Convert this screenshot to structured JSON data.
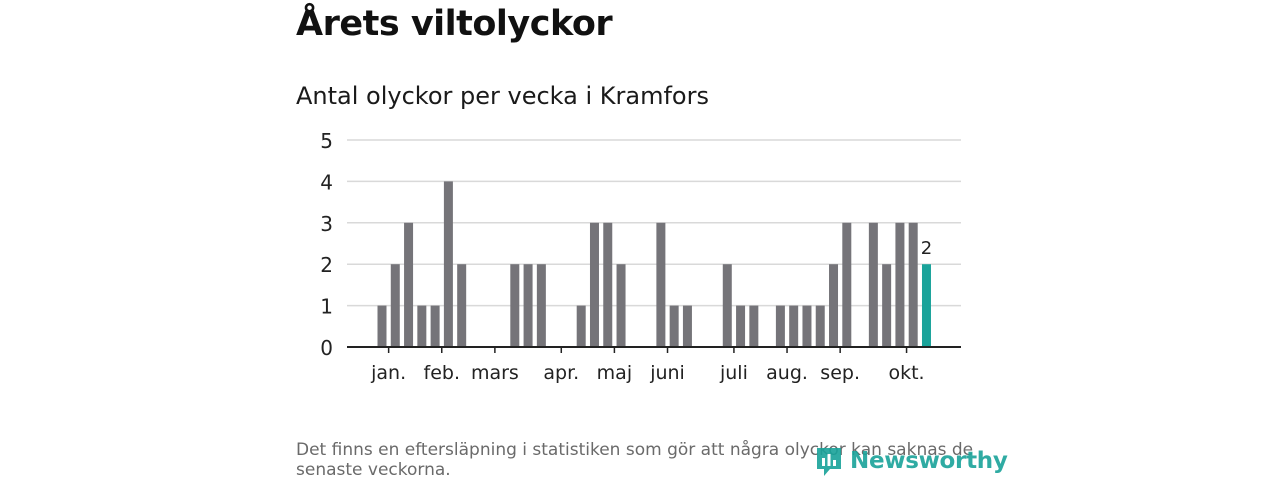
{
  "title": "Årets viltolyckor",
  "chart_data": {
    "type": "bar",
    "title": "Antal olyckor per vecka i Kramfors",
    "xlabel": "",
    "ylabel": "",
    "ylim": [
      0,
      5
    ],
    "yticks": [
      0,
      1,
      2,
      3,
      4,
      5
    ],
    "weeks": [
      1,
      2,
      3,
      4,
      5,
      6,
      7,
      8,
      9,
      10,
      11,
      12,
      13,
      14,
      15,
      16,
      17,
      18,
      19,
      20,
      21,
      22,
      23,
      24,
      25,
      26,
      27,
      28,
      29,
      30,
      31,
      32,
      33,
      34,
      35,
      36,
      37,
      38,
      39,
      40,
      41,
      42
    ],
    "values": [
      1,
      2,
      3,
      1,
      1,
      4,
      2,
      0,
      0,
      0,
      2,
      2,
      2,
      0,
      0,
      1,
      3,
      3,
      2,
      0,
      0,
      3,
      1,
      1,
      0,
      0,
      2,
      1,
      1,
      0,
      1,
      1,
      1,
      1,
      2,
      3,
      0,
      3,
      2,
      3,
      3,
      2
    ],
    "month_labels": [
      {
        "label": "jan.",
        "week": 1.5
      },
      {
        "label": "feb.",
        "week": 5.5
      },
      {
        "label": "mars",
        "week": 9.5
      },
      {
        "label": "apr.",
        "week": 14.5
      },
      {
        "label": "maj",
        "week": 18.5
      },
      {
        "label": "juni",
        "week": 22.5
      },
      {
        "label": "juli",
        "week": 27.5
      },
      {
        "label": "aug.",
        "week": 31.5
      },
      {
        "label": "sep.",
        "week": 35.5
      },
      {
        "label": "okt.",
        "week": 40.5
      }
    ],
    "highlight": {
      "week": 42,
      "value": 2,
      "label": "2"
    },
    "colors": {
      "bar": "#757479",
      "highlight": "#1aa39a",
      "grid": "#d9d9d9",
      "axis": "#222222"
    }
  },
  "footnote": "Det finns en eftersläpning i statistiken som gör att några olyckor kan saknas de senaste veckorna.",
  "logo": {
    "text": "Newsworthy",
    "icon": "newsworthy-logo-icon"
  }
}
